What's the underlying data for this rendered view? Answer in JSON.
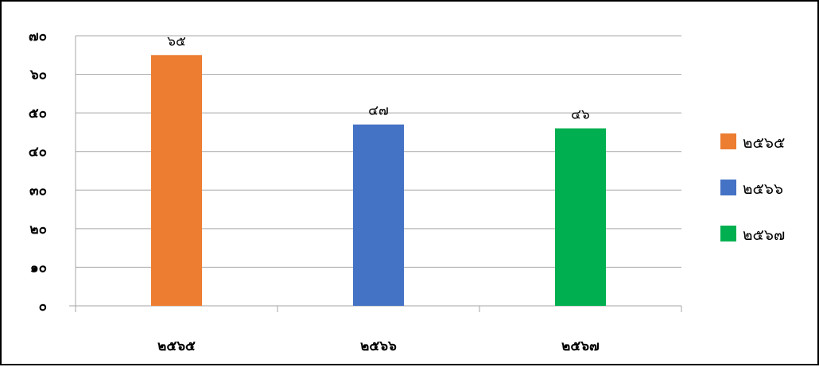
{
  "chart_data": {
    "type": "bar",
    "categories": [
      "๒๕๖๕",
      "๒๕๖๖",
      "๒๕๖๗"
    ],
    "values": [
      65,
      47,
      46
    ],
    "value_labels": [
      "๖๕",
      "๔๗",
      "๔๖"
    ],
    "colors": [
      "#ED7D31",
      "#4472C4",
      "#00B050"
    ],
    "ylim": [
      0,
      70
    ],
    "yticks": [
      0,
      10,
      20,
      30,
      40,
      50,
      60,
      70
    ],
    "ytick_labels": [
      "๐",
      "๑๐",
      "๒๐",
      "๓๐",
      "๔๐",
      "๕๐",
      "๖๐",
      "๗๐"
    ],
    "grid": true,
    "legend": {
      "position": "right",
      "entries": [
        "๒๕๖๕",
        "๒๕๖๖",
        "๒๕๖๗"
      ]
    },
    "title": "",
    "xlabel": "",
    "ylabel": ""
  }
}
